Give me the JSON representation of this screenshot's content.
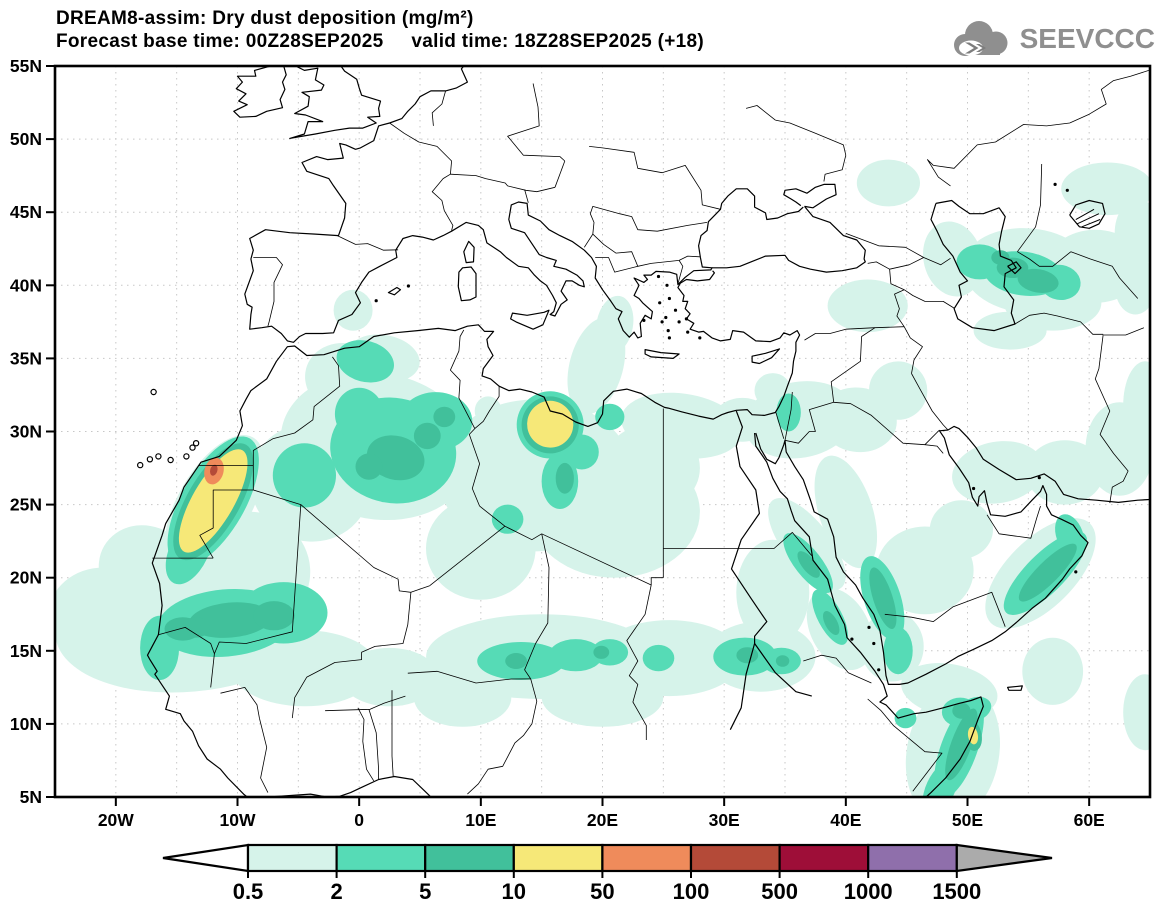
{
  "header": {
    "title": "DREAM8-assim: Dry dust deposition (mg/m²)",
    "subtitle": "Forecast base time: 00Z28SEP2025     valid time: 18Z28SEP2025 (+18)"
  },
  "logo": {
    "text": "SEEVCCC"
  },
  "map": {
    "lon_min": -25,
    "lon_max": 65,
    "lat_min": 5,
    "lat_max": 55,
    "grid_step_deg": 5,
    "lat_tick_labels": [
      "55N",
      "50N",
      "45N",
      "40N",
      "35N",
      "30N",
      "25N",
      "20N",
      "15N",
      "10N",
      "5N"
    ],
    "lat_tick_values": [
      55,
      50,
      45,
      40,
      35,
      30,
      25,
      20,
      15,
      10,
      5
    ],
    "lon_tick_labels": [
      "20W",
      "10W",
      "0",
      "10E",
      "20E",
      "30E",
      "40E",
      "50E",
      "60E"
    ],
    "lon_tick_values": [
      -20,
      -10,
      0,
      10,
      20,
      30,
      40,
      50,
      60
    ]
  },
  "legend": {
    "values": [
      "0.5",
      "2",
      "5",
      "10",
      "50",
      "100",
      "500",
      "1000",
      "1500"
    ],
    "segment_colors": [
      "#d6f3ea",
      "#56dbb6",
      "#41c09b",
      "#f6e878",
      "#ef8b5b",
      "#b44a38",
      "#9e0e38",
      "#8f6fab"
    ],
    "below_min_color": "#ffffff",
    "above_max_color": "#ababab"
  },
  "colors": {
    "coast": "#000000",
    "border": "#000000",
    "grid": "#c7c7c7",
    "frame": "#000000",
    "logo_gray": "#8f8f8f",
    "logo_dark": "#7d7d7d"
  }
}
